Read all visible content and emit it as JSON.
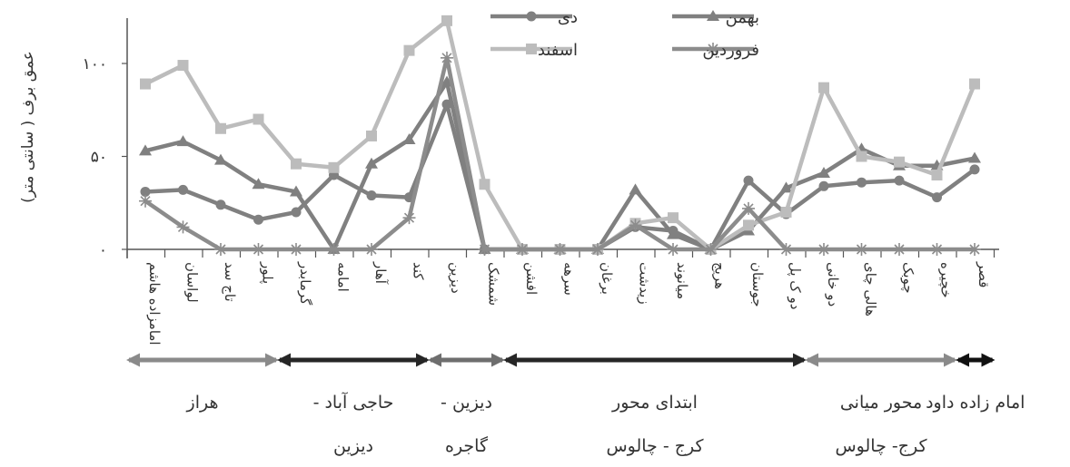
{
  "chart_data": {
    "type": "line",
    "ylabel": "عمق برف ( سانتی متر)",
    "ylim": [
      0,
      125
    ],
    "yticks": [
      {
        "value": 0,
        "label": "۰"
      },
      {
        "value": 50,
        "label": "۵۰"
      },
      {
        "value": 100,
        "label": "۱۰۰"
      }
    ],
    "grid": false,
    "legend_position": "top",
    "categories": [
      "امامزاده هاشم",
      "لواسان",
      "تاج سد",
      "پلور",
      "گرمابدر",
      "امامه",
      "آهار",
      "کند",
      "دیزین",
      "شمشک",
      "افشن",
      "سرهه",
      "برغان",
      "زیدشت",
      "میانوند",
      "هریج",
      "جوستان",
      "دو ک پل",
      "دو خانی",
      "هالی چای",
      "چوبک",
      "خچیره",
      "قصر"
    ],
    "series": [
      {
        "name": "دی",
        "color": "#808080",
        "marker": "circle",
        "values": [
          31,
          32,
          24,
          16,
          20,
          40,
          29,
          28,
          78,
          0,
          0,
          0,
          0,
          12,
          10,
          0,
          37,
          19,
          34,
          36,
          37,
          28,
          43
        ]
      },
      {
        "name": "بهمن",
        "color": "#808080",
        "marker": "triangle",
        "values": [
          53,
          58,
          48,
          35,
          31,
          0,
          46,
          59,
          90,
          0,
          0,
          0,
          0,
          32,
          8,
          0,
          10,
          33,
          41,
          54,
          45,
          45,
          49
        ]
      },
      {
        "name": "اسفند",
        "color": "#bcbcbc",
        "marker": "square",
        "values": [
          89,
          99,
          65,
          70,
          46,
          44,
          61,
          107,
          123,
          35,
          0,
          0,
          0,
          14,
          17,
          0,
          13,
          20,
          87,
          50,
          47,
          40,
          89
        ]
      },
      {
        "name": "فروردین",
        "color": "#8c8c8c",
        "marker": "star",
        "values": [
          26,
          12,
          0,
          0,
          0,
          0,
          0,
          17,
          103,
          0,
          0,
          0,
          0,
          13,
          0,
          0,
          22,
          0,
          0,
          0,
          0,
          0,
          0
        ]
      }
    ],
    "regions": [
      {
        "label_lines": [
          "هراز"
        ],
        "color": "#8a8a8a",
        "from": 0,
        "to": 3
      },
      {
        "label_lines": [
          "حاجی آباد -",
          "دیزین"
        ],
        "color": "#262626",
        "from": 4,
        "to": 7
      },
      {
        "label_lines": [
          "دیزین -",
          "گاجره"
        ],
        "color": "#6e6e6e",
        "from": 8,
        "to": 9
      },
      {
        "label_lines": [
          "ابتدای محور",
          "کرج - چالوس"
        ],
        "color": "#262626",
        "from": 10,
        "to": 17
      },
      {
        "label_lines": [
          "محور میانی",
          "کرج- چالوس"
        ],
        "color": "#8a8a8a",
        "from": 18,
        "to": 21
      },
      {
        "label_lines": [
          "امام زاده داود"
        ],
        "color": "#111111",
        "from": 22,
        "to": 22
      }
    ]
  }
}
